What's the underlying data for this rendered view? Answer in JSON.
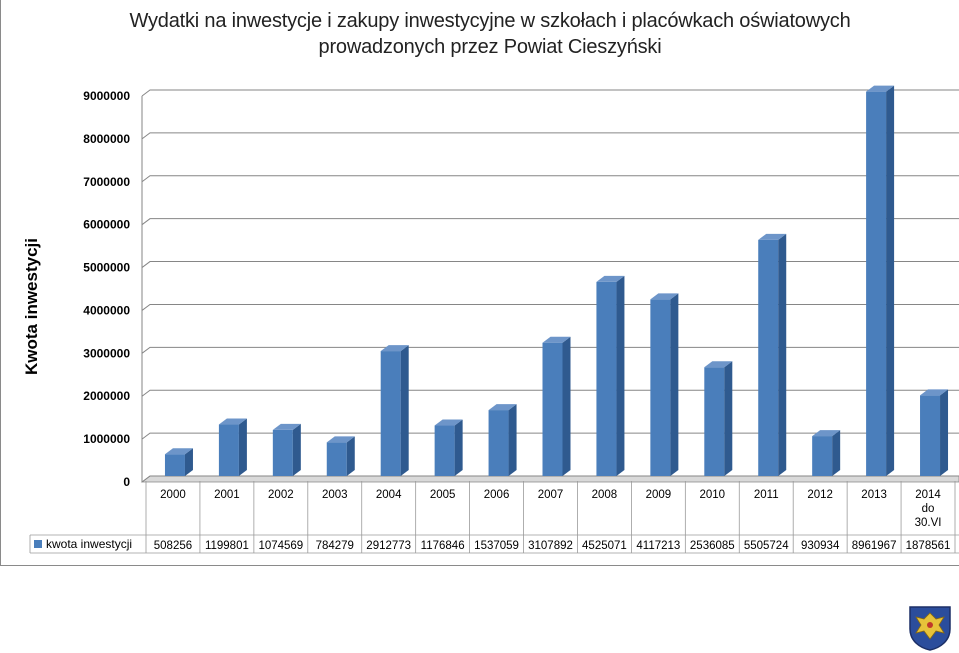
{
  "chart_data": {
    "type": "bar",
    "title_line1": "Wydatki na inwestycje i zakupy inwestycyjne w szkołach i placówkach oświatowych",
    "title_line2": "prowadzonych przez Powiat Cieszyński",
    "ylabel": "Kwota inwestycji",
    "ylim": [
      0,
      9000000
    ],
    "yticks": [
      "0",
      "1000000",
      "2000000",
      "3000000",
      "4000000",
      "5000000",
      "6000000",
      "7000000",
      "8000000",
      "9000000"
    ],
    "categories": [
      "2000",
      "2001",
      "2002",
      "2003",
      "2004",
      "2005",
      "2006",
      "2007",
      "2008",
      "2009",
      "2010",
      "2011",
      "2012",
      "2013",
      "2014 do 30.VI"
    ],
    "category_lines": [
      [
        "2000"
      ],
      [
        "2001"
      ],
      [
        "2002"
      ],
      [
        "2003"
      ],
      [
        "2004"
      ],
      [
        "2005"
      ],
      [
        "2006"
      ],
      [
        "2007"
      ],
      [
        "2008"
      ],
      [
        "2009"
      ],
      [
        "2010"
      ],
      [
        "2011"
      ],
      [
        "2012"
      ],
      [
        "2013"
      ],
      [
        "2014",
        "do",
        "30.VI"
      ]
    ],
    "series": [
      {
        "name": "kwota inwestycji",
        "values": [
          508256,
          1199801,
          1074569,
          784279,
          2912773,
          1176846,
          1537059,
          3107892,
          4525071,
          4117213,
          2536085,
          5505724,
          930934,
          8961967,
          1878561
        ],
        "labels": [
          "508256",
          "1199801",
          "1074569",
          "784279",
          "2912773",
          "1176846",
          "1537059",
          "3107892",
          "4525071",
          "4117213",
          "2536085",
          "5505724",
          "930934",
          "8961967",
          "1878561"
        ]
      }
    ],
    "grid": true,
    "data_table": true,
    "colors": {
      "bar_front": "#4a7ebb",
      "bar_side": "#2f5a8f",
      "bar_top": "#6d95c9",
      "grid": "#868686",
      "floor": "#d9d9d9"
    }
  },
  "icons": {
    "emblem": "coat-of-arms-icon"
  }
}
